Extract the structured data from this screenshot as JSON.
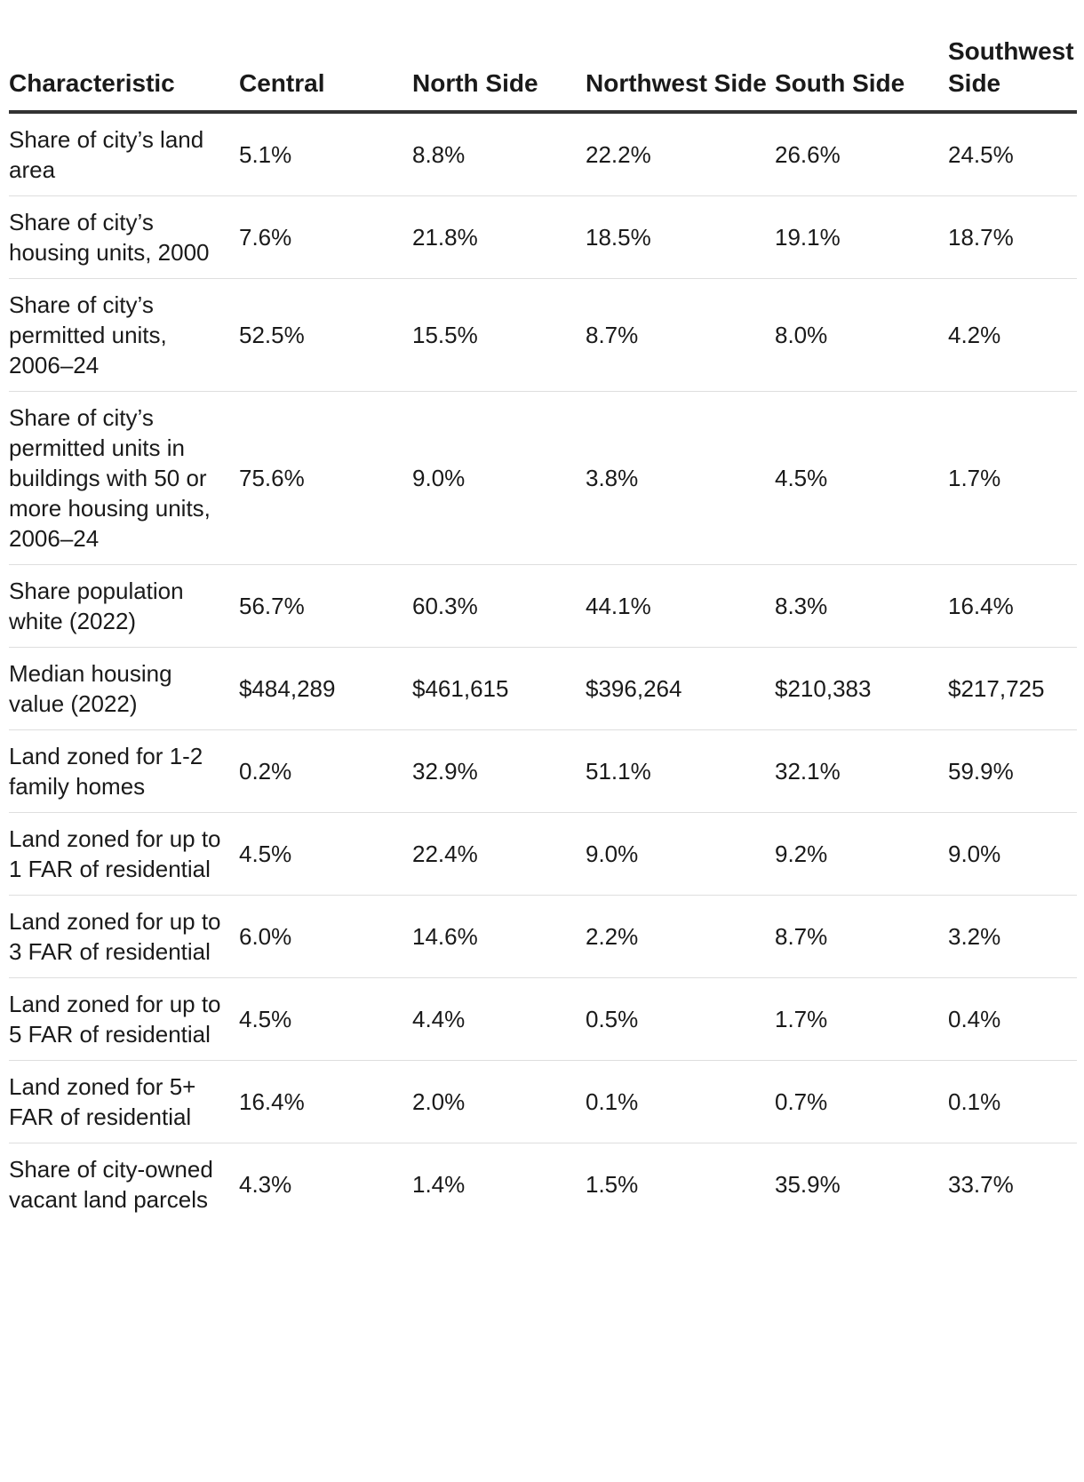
{
  "table": {
    "headers": [
      "Characteristic",
      "Central",
      "North Side",
      "Northwest Side",
      "South Side",
      "Southwest Side"
    ],
    "rows": [
      {
        "label": "Share of city’s land area",
        "values": [
          "5.1%",
          "8.8%",
          "22.2%",
          "26.6%",
          "24.5%"
        ]
      },
      {
        "label": "Share of city’s housing units, 2000",
        "values": [
          "7.6%",
          "21.8%",
          "18.5%",
          "19.1%",
          "18.7%"
        ]
      },
      {
        "label": "Share of city’s permitted units, 2006–24",
        "values": [
          "52.5%",
          "15.5%",
          "8.7%",
          "8.0%",
          "4.2%"
        ]
      },
      {
        "label": "Share of city’s permitted units in buildings with 50 or more housing units, 2006–24",
        "values": [
          "75.6%",
          "9.0%",
          "3.8%",
          "4.5%",
          "1.7%"
        ]
      },
      {
        "label": "Share population white (2022)",
        "values": [
          "56.7%",
          "60.3%",
          "44.1%",
          "8.3%",
          "16.4%"
        ]
      },
      {
        "label": "Median housing value (2022)",
        "values": [
          "$484,289",
          "$461,615",
          "$396,264",
          "$210,383",
          "$217,725"
        ]
      },
      {
        "label": "Land zoned for 1-2 family homes",
        "values": [
          "0.2%",
          "32.9%",
          "51.1%",
          "32.1%",
          "59.9%"
        ]
      },
      {
        "label": "Land zoned for up to 1 FAR of residential",
        "values": [
          "4.5%",
          "22.4%",
          "9.0%",
          "9.2%",
          "9.0%"
        ]
      },
      {
        "label": "Land zoned for up to 3 FAR of residential",
        "values": [
          "6.0%",
          "14.6%",
          "2.2%",
          "8.7%",
          "3.2%"
        ]
      },
      {
        "label": "Land zoned for up to 5 FAR of residential",
        "values": [
          "4.5%",
          "4.4%",
          "0.5%",
          "1.7%",
          "0.4%"
        ]
      },
      {
        "label": "Land zoned for 5+ FAR of residential",
        "values": [
          "16.4%",
          "2.0%",
          "0.1%",
          "0.7%",
          "0.1%"
        ]
      },
      {
        "label": "Share of city-owned vacant land parcels",
        "values": [
          "4.3%",
          "1.4%",
          "1.5%",
          "35.9%",
          "33.7%"
        ]
      }
    ]
  }
}
